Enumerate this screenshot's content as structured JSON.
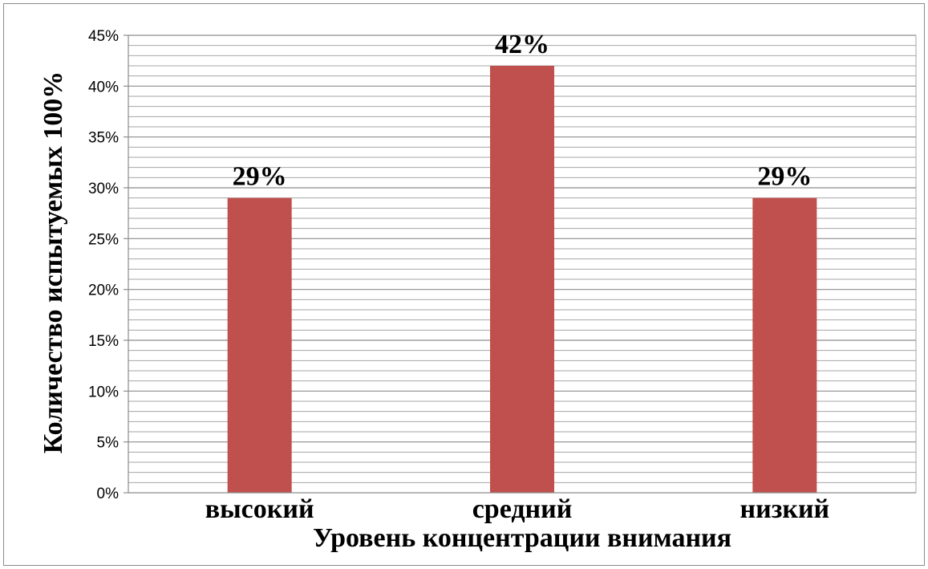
{
  "chart_data": {
    "type": "bar",
    "categories": [
      "высокий",
      "средний",
      "низкий"
    ],
    "values": [
      29,
      42,
      29
    ],
    "data_labels": [
      "29%",
      "42%",
      "29%"
    ],
    "title": "",
    "xlabel": "Уровень концентрации внимания",
    "ylabel": "Количество испытуемых 100%",
    "ylim": [
      0,
      45
    ],
    "yticks": [
      {
        "value": 0,
        "label": "0%"
      },
      {
        "value": 5,
        "label": "5%"
      },
      {
        "value": 10,
        "label": "10%"
      },
      {
        "value": 15,
        "label": "15%"
      },
      {
        "value": 20,
        "label": "20%"
      },
      {
        "value": 25,
        "label": "25%"
      },
      {
        "value": 30,
        "label": "30%"
      },
      {
        "value": 35,
        "label": "35%"
      },
      {
        "value": 40,
        "label": "40%"
      },
      {
        "value": 45,
        "label": "45%"
      }
    ],
    "minor_grid_step": 1,
    "grid": true,
    "legend": "none",
    "bar_color": "#c0504d",
    "grid_color": "#a6a6a6"
  }
}
